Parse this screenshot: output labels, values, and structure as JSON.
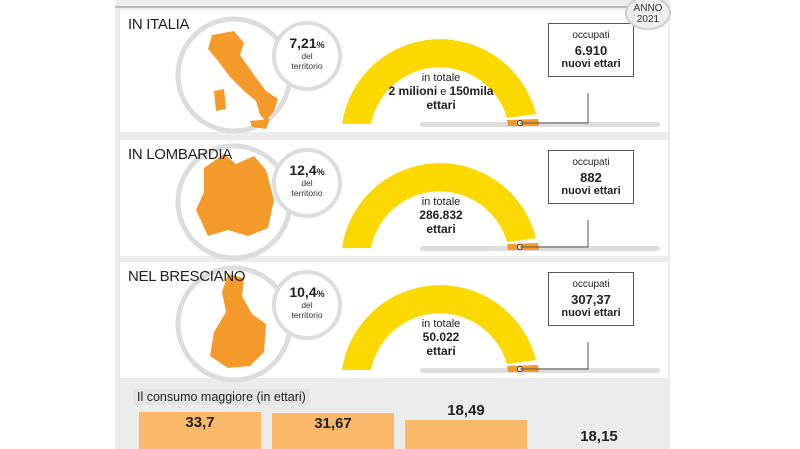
{
  "badge": {
    "line1": "ANNO",
    "line2": "2021"
  },
  "colors": {
    "gauge": "#fbd900",
    "accent": "#f39a2a",
    "bars": "#f9b86a"
  },
  "sections": [
    {
      "title": "IN ITALIA",
      "map_icon": "italy-map",
      "pct_value": "7,21",
      "pct_unit": "%",
      "pct_sub1": "del",
      "pct_sub2": "territorio",
      "gauge_line1": "in totale",
      "gauge_line2a": "2 milioni",
      "gauge_line2b": " e ",
      "gauge_line2c": "150mila",
      "gauge_line3": "ettari",
      "box_label": "occupati",
      "box_value": "6.910",
      "box_unit": "nuovi ettari"
    },
    {
      "title": "IN LOMBARDIA",
      "map_icon": "lombardy-map",
      "pct_value": "12,4",
      "pct_unit": "%",
      "pct_sub1": "del",
      "pct_sub2": "territorio",
      "gauge_line1": "in totale",
      "gauge_line2a": "286.832",
      "gauge_line2b": "",
      "gauge_line2c": "",
      "gauge_line3": "ettari",
      "box_label": "occupati",
      "box_value": "882",
      "box_unit": "nuovi ettari"
    },
    {
      "title": "NEL BRESCIANO",
      "map_icon": "brescia-province-map",
      "pct_value": "10,4",
      "pct_unit": "%",
      "pct_sub1": "del",
      "pct_sub2": "territorio",
      "gauge_line1": "in totale",
      "gauge_line2a": "50.022",
      "gauge_line2b": "",
      "gauge_line2c": "",
      "gauge_line3": "ettari",
      "box_label": "occupati",
      "box_value": "307,37",
      "box_unit": "nuovi ettari"
    }
  ],
  "chart_data": {
    "type": "bar",
    "title": "Il consumo maggiore (in ettari)",
    "values": [
      33.7,
      31.67,
      18.49,
      18.15
    ],
    "labels": [
      "33,7",
      "31,67",
      "18,49",
      "18,15"
    ]
  }
}
